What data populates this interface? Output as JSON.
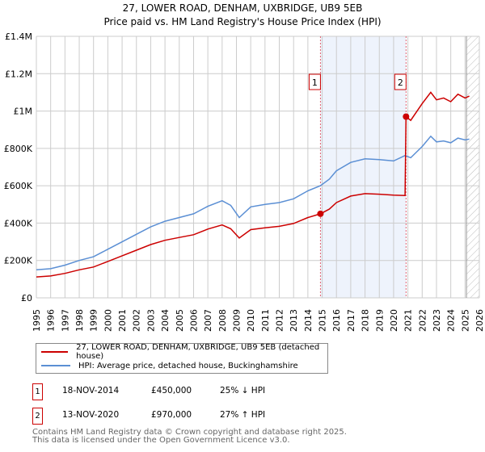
{
  "title_line1": "27, LOWER ROAD, DENHAM, UXBRIDGE, UB9 5EB",
  "title_line2": "Price paid vs. HM Land Registry's House Price Index (HPI)",
  "chart_data": {
    "type": "line",
    "xlim": [
      1995,
      2026
    ],
    "ylim": [
      0,
      1400000
    ],
    "yticks": [
      0,
      200000,
      400000,
      600000,
      800000,
      1000000,
      1200000,
      1400000
    ],
    "ytick_labels": [
      "£0",
      "£200K",
      "£400K",
      "£600K",
      "£800K",
      "£1M",
      "£1.2M",
      "£1.4M"
    ],
    "xticks": [
      1995,
      1996,
      1997,
      1998,
      1999,
      2000,
      2001,
      2002,
      2003,
      2004,
      2005,
      2006,
      2007,
      2008,
      2009,
      2010,
      2011,
      2012,
      2013,
      2014,
      2015,
      2016,
      2017,
      2018,
      2019,
      2020,
      2021,
      2022,
      2023,
      2024,
      2025,
      2026
    ],
    "series": [
      {
        "name": "27, LOWER ROAD, DENHAM, UXBRIDGE, UB9 5EB (detached house)",
        "color": "#cc0000",
        "x": [
          1995,
          1996,
          1997,
          1998,
          1999,
          2000,
          2001,
          2002,
          2003,
          2004,
          2005,
          2006,
          2007,
          2008,
          2008.6,
          2009.2,
          2010,
          2011,
          2012,
          2013,
          2014,
          2014.88,
          2015.5,
          2016,
          2017,
          2018,
          2019,
          2020,
          2020.8,
          2020.87,
          2021.2,
          2022,
          2022.6,
          2023,
          2023.5,
          2024,
          2024.5,
          2025,
          2025.3
        ],
        "y": [
          112000,
          117000,
          131000,
          150000,
          165000,
          195000,
          225000,
          255000,
          285000,
          308000,
          323000,
          338000,
          368000,
          390000,
          370000,
          320000,
          365000,
          375000,
          383000,
          398000,
          430000,
          450000,
          475000,
          510000,
          545000,
          558000,
          555000,
          550000,
          548000,
          970000,
          950000,
          1040000,
          1100000,
          1060000,
          1070000,
          1050000,
          1090000,
          1070000,
          1080000
        ]
      },
      {
        "name": "HPI: Average price, detached house, Buckinghamshire",
        "color": "#5b8fd4",
        "x": [
          1995,
          1996,
          1997,
          1998,
          1999,
          2000,
          2001,
          2002,
          2003,
          2004,
          2005,
          2006,
          2007,
          2008,
          2008.6,
          2009.2,
          2010,
          2011,
          2012,
          2013,
          2014,
          2014.88,
          2015.5,
          2016,
          2017,
          2018,
          2019,
          2020,
          2020.8,
          2021.2,
          2022,
          2022.6,
          2023,
          2023.5,
          2024,
          2024.5,
          2025,
          2025.3
        ],
        "y": [
          150000,
          156000,
          175000,
          200000,
          220000,
          260000,
          300000,
          340000,
          380000,
          410000,
          430000,
          450000,
          490000,
          520000,
          495000,
          430000,
          487000,
          500000,
          510000,
          530000,
          573000,
          600000,
          635000,
          680000,
          725000,
          744000,
          740000,
          733000,
          762000,
          750000,
          810000,
          865000,
          835000,
          840000,
          830000,
          855000,
          845000,
          850000
        ]
      }
    ],
    "sales": [
      {
        "label": "1",
        "x": 2014.88,
        "y": 450000
      },
      {
        "label": "2",
        "x": 2020.87,
        "y": 970000
      }
    ],
    "hatch_from": 2025.1
  },
  "legend": {
    "items": [
      {
        "label": "27, LOWER ROAD, DENHAM, UXBRIDGE, UB9 5EB (detached house)",
        "color": "#cc0000"
      },
      {
        "label": "HPI: Average price, detached house, Buckinghamshire",
        "color": "#5b8fd4"
      }
    ]
  },
  "transactions": [
    {
      "num": "1",
      "date": "18-NOV-2014",
      "price": "£450,000",
      "hpi": "25% ↓ HPI"
    },
    {
      "num": "2",
      "date": "13-NOV-2020",
      "price": "£970,000",
      "hpi": "27% ↑ HPI"
    }
  ],
  "footer": {
    "line1": "Contains HM Land Registry data © Crown copyright and database right 2025.",
    "line2": "This data is licensed under the Open Government Licence v3.0."
  }
}
